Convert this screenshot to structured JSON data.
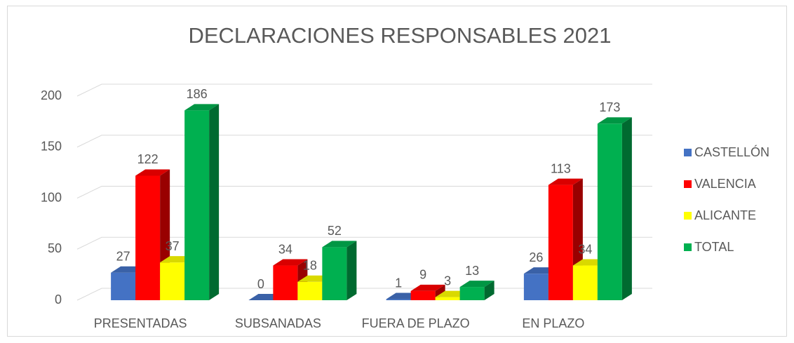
{
  "chart_data": {
    "type": "bar3d",
    "title": "DECLARACIONES RESPONSABLES 2021",
    "categories": [
      "PRESENTADAS",
      "SUBSANADAS",
      "FUERA DE PLAZO",
      "EN PLAZO"
    ],
    "series": [
      {
        "name": "CASTELLÓN",
        "color": "#4472c4",
        "values": [
          27,
          0,
          1,
          26
        ]
      },
      {
        "name": "VALENCIA",
        "color": "#ff0000",
        "values": [
          122,
          34,
          9,
          113
        ]
      },
      {
        "name": "ALICANTE",
        "color": "#ffff00",
        "values": [
          37,
          18,
          3,
          34
        ]
      },
      {
        "name": "TOTAL",
        "color": "#00b050",
        "values": [
          186,
          52,
          13,
          173
        ]
      }
    ],
    "ylim": [
      0,
      200
    ],
    "yticks": [
      0,
      50,
      100,
      150,
      200
    ],
    "grid": true,
    "legend": "right"
  }
}
